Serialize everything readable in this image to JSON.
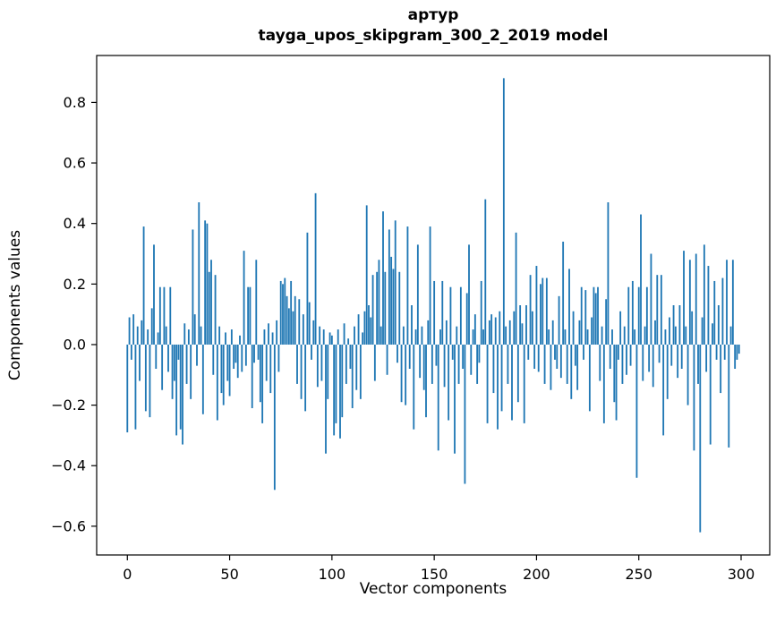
{
  "figure": {
    "background": "#ffffff"
  },
  "chart_data": {
    "type": "bar",
    "title": "артур",
    "subtitle": "tayga_upos_skipgram_300_2_2019 model",
    "xlabel": "Vector components",
    "ylabel": "Components values",
    "bar_color": "#1f77b4",
    "grid": false,
    "legend": null,
    "xlim": [
      -15,
      314
    ],
    "ylim": [
      -0.695,
      0.955
    ],
    "xticks": {
      "values": [
        0,
        50,
        100,
        150,
        200,
        250,
        300
      ],
      "labels": [
        "0",
        "50",
        "100",
        "150",
        "200",
        "250",
        "300"
      ]
    },
    "yticks": {
      "values": [
        -0.6,
        -0.4,
        -0.2,
        0.0,
        0.2,
        0.4,
        0.6,
        0.8
      ],
      "labels": [
        "−0.6",
        "−0.4",
        "−0.2",
        "0.0",
        "0.2",
        "0.4",
        "0.6",
        "0.8"
      ]
    },
    "x_start": 0,
    "values": [
      -0.29,
      0.09,
      -0.05,
      0.1,
      -0.28,
      0.06,
      -0.12,
      0.08,
      0.39,
      -0.22,
      0.05,
      -0.24,
      0.12,
      0.33,
      -0.08,
      0.04,
      0.19,
      -0.15,
      0.19,
      0.06,
      -0.09,
      0.19,
      -0.18,
      -0.12,
      -0.3,
      -0.05,
      -0.28,
      -0.33,
      0.07,
      -0.13,
      0.05,
      -0.18,
      0.38,
      0.1,
      -0.07,
      0.47,
      0.06,
      -0.23,
      0.41,
      0.4,
      0.24,
      0.28,
      -0.1,
      0.23,
      -0.25,
      0.06,
      -0.16,
      -0.2,
      0.04,
      -0.12,
      -0.17,
      0.05,
      -0.08,
      -0.06,
      -0.11,
      0.03,
      -0.09,
      0.31,
      -0.07,
      0.19,
      0.19,
      -0.21,
      -0.06,
      0.28,
      -0.05,
      -0.19,
      -0.26,
      0.05,
      -0.12,
      0.07,
      -0.16,
      0.04,
      -0.48,
      0.08,
      -0.09,
      0.21,
      0.2,
      0.22,
      0.16,
      0.12,
      0.21,
      0.11,
      0.16,
      -0.13,
      0.15,
      -0.18,
      0.1,
      -0.22,
      0.37,
      0.14,
      -0.05,
      0.08,
      0.5,
      -0.14,
      0.06,
      -0.12,
      0.05,
      -0.36,
      -0.18,
      0.04,
      0.03,
      -0.3,
      -0.26,
      0.05,
      -0.31,
      -0.24,
      0.07,
      -0.13,
      0.02,
      -0.08,
      -0.21,
      0.06,
      -0.15,
      0.1,
      -0.18,
      0.04,
      0.11,
      0.46,
      0.13,
      0.09,
      0.23,
      -0.12,
      0.24,
      0.28,
      0.06,
      0.44,
      0.24,
      -0.1,
      0.38,
      0.29,
      0.25,
      0.41,
      -0.06,
      0.24,
      -0.19,
      0.06,
      -0.2,
      0.39,
      -0.08,
      0.13,
      -0.28,
      0.05,
      0.33,
      -0.11,
      0.06,
      -0.15,
      -0.24,
      0.08,
      0.39,
      -0.13,
      0.21,
      -0.07,
      -0.35,
      0.05,
      0.21,
      -0.14,
      0.08,
      -0.25,
      0.19,
      -0.05,
      -0.36,
      0.06,
      -0.13,
      0.19,
      -0.08,
      -0.46,
      0.17,
      0.33,
      -0.1,
      0.05,
      0.1,
      -0.13,
      -0.06,
      0.21,
      0.05,
      0.48,
      -0.26,
      0.08,
      0.1,
      -0.16,
      0.09,
      -0.28,
      0.11,
      -0.22,
      0.88,
      0.06,
      -0.13,
      0.08,
      -0.25,
      0.11,
      0.37,
      -0.19,
      0.13,
      0.07,
      -0.26,
      0.13,
      -0.05,
      0.23,
      0.11,
      -0.08,
      0.26,
      -0.09,
      0.2,
      0.22,
      -0.13,
      0.22,
      0.05,
      -0.15,
      0.08,
      -0.05,
      -0.08,
      0.16,
      -0.11,
      0.34,
      0.05,
      -0.13,
      0.25,
      -0.18,
      0.11,
      -0.07,
      -0.15,
      0.08,
      0.19,
      -0.05,
      0.18,
      0.05,
      -0.22,
      0.09,
      0.19,
      0.17,
      0.19,
      -0.12,
      0.06,
      -0.26,
      0.15,
      0.47,
      -0.08,
      0.05,
      -0.19,
      -0.25,
      -0.05,
      0.11,
      -0.13,
      0.06,
      -0.1,
      0.19,
      -0.07,
      0.21,
      0.05,
      -0.44,
      0.19,
      0.43,
      -0.12,
      0.06,
      0.19,
      -0.09,
      0.3,
      -0.14,
      0.08,
      0.23,
      -0.06,
      0.23,
      -0.3,
      0.05,
      -0.18,
      0.09,
      -0.07,
      0.13,
      0.06,
      -0.11,
      0.13,
      -0.08,
      0.31,
      0.06,
      -0.2,
      0.28,
      0.11,
      -0.35,
      0.3,
      -0.13,
      -0.62,
      0.09,
      0.33,
      -0.09,
      0.26,
      -0.33,
      0.07,
      0.21,
      -0.05,
      0.13,
      -0.16,
      0.22,
      -0.05,
      0.28,
      -0.34,
      0.06,
      0.28,
      -0.08,
      -0.05,
      -0.03
    ]
  }
}
